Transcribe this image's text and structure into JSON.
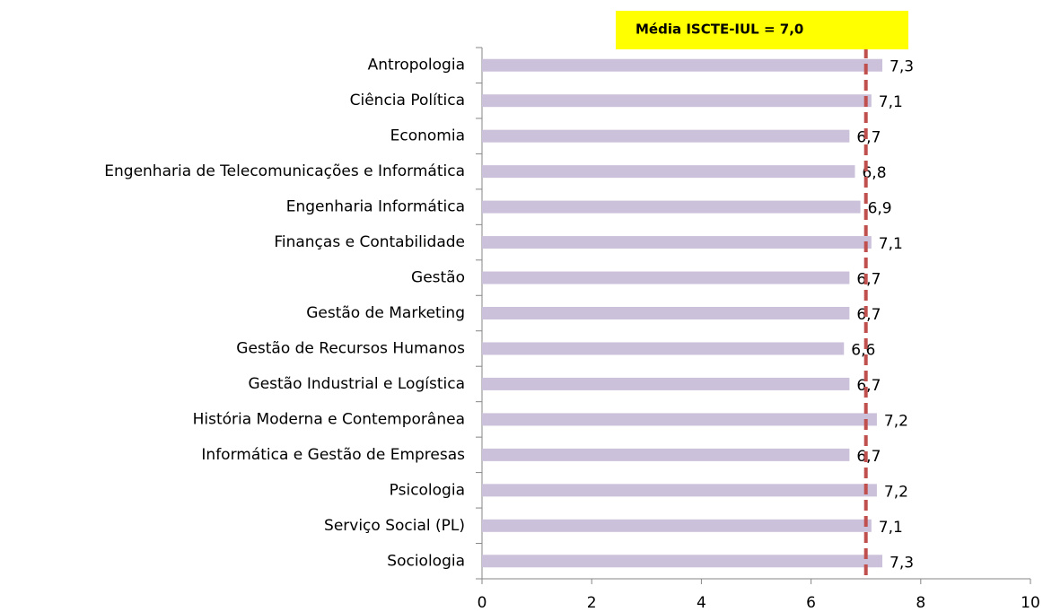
{
  "chart_data": {
    "type": "hbar",
    "categories": [
      "Antropologia",
      "Ciência Política",
      "Economia",
      "Engenharia de Telecomunicações e Informática",
      "Engenharia Informática",
      "Finanças e Contabilidade",
      "Gestão",
      "Gestão de Marketing",
      "Gestão de Recursos Humanos",
      "Gestão Industrial e Logística",
      "História Moderna e Contemporânea",
      "Informática e Gestão de Empresas",
      "Psicologia",
      "Serviço Social (PL)",
      "Sociologia"
    ],
    "values": [
      7.3,
      7.1,
      6.7,
      6.8,
      6.9,
      7.1,
      6.7,
      6.7,
      6.6,
      6.7,
      7.2,
      6.7,
      7.2,
      7.1,
      7.3
    ],
    "value_labels": [
      "7,3",
      "7,1",
      "6,7",
      "6,8",
      "6,9",
      "7,1",
      "6,7",
      "6,7",
      "6,6",
      "6,7",
      "7,2",
      "6,7",
      "7,2",
      "7,1",
      "7,3"
    ],
    "color": "#ccc1da",
    "xlim": [
      0,
      10
    ],
    "xticks": [
      0,
      2,
      4,
      6,
      8,
      10
    ],
    "reference": {
      "value": 7,
      "label": "Média ISCTE-IUL = 7,0",
      "color": "#c0504d",
      "box_color": "#ffff00"
    }
  }
}
